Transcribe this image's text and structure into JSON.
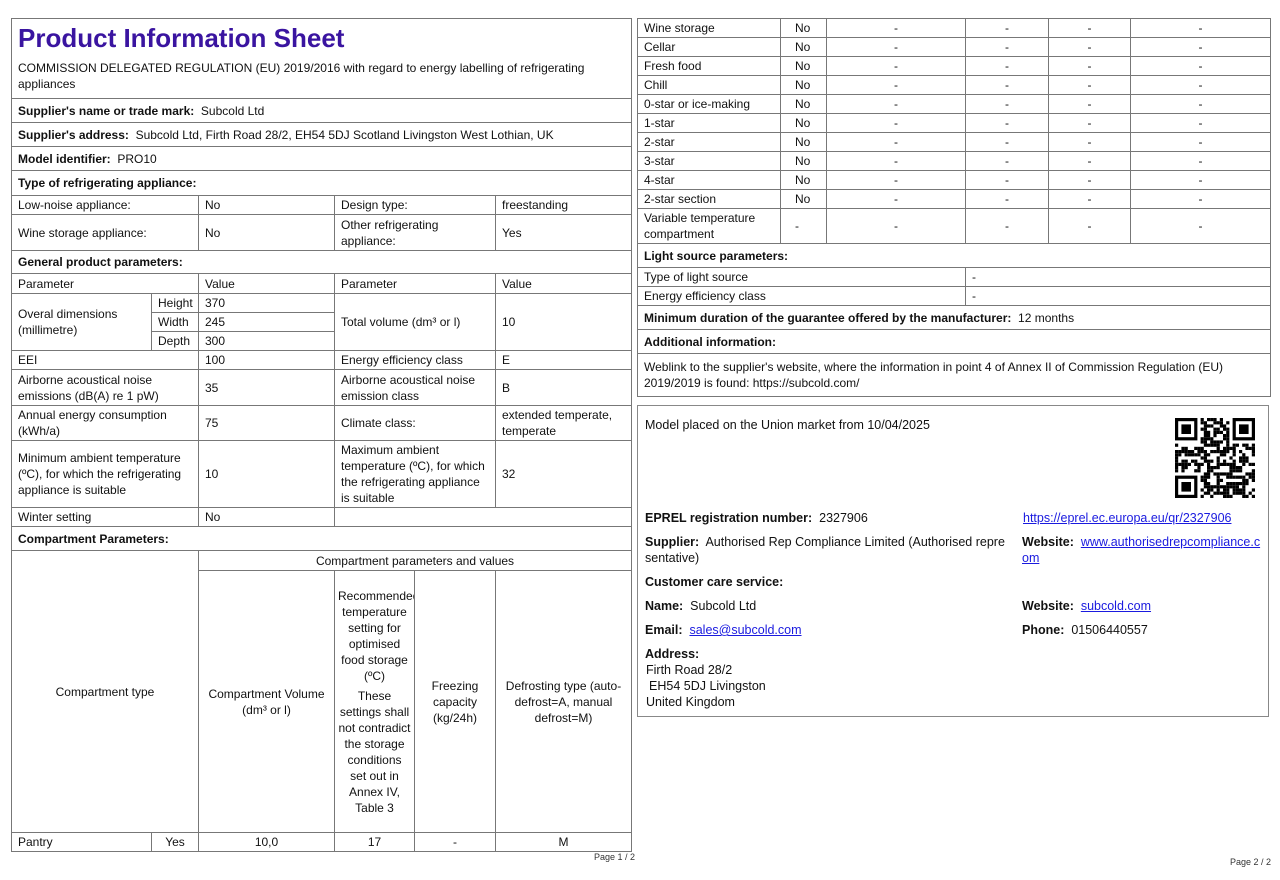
{
  "page1": {
    "title": "Product Information Sheet",
    "regulation": "COMMISSION DELEGATED REGULATION (EU) 2019/2016 with regard to energy labelling of refrigerating appliances",
    "supplier_label": "Supplier's name or trade mark:",
    "supplier": "Subcold Ltd",
    "address_label": "Supplier's address:",
    "address": "Subcold Ltd, Firth Road 28/2, EH54 5DJ Scotland Livingston West Lothian, UK",
    "model_label": "Model identifier:",
    "model": "PRO10",
    "type_heading": "Type of refrigerating appliance:",
    "low_noise_label": "Low-noise appliance:",
    "low_noise": "No",
    "design_label": "Design type:",
    "design": "freestanding",
    "wine_label": "Wine storage appliance:",
    "wine": "No",
    "other_label": "Other refrigerating appliance:",
    "other": "Yes",
    "general_heading": "General product parameters:",
    "col_param": "Parameter",
    "col_value": "Value",
    "dims_label": "Overal dimensions (millimetre)",
    "height_label": "Height",
    "height": "370",
    "width_label": "Width",
    "width": "245",
    "depth_label": "Depth",
    "depth": "300",
    "volume_label": "Total volume (dm³ or l)",
    "volume": "10",
    "eei_label": "EEI",
    "eei": "100",
    "eclass_label": "Energy efficiency class",
    "eclass": "E",
    "noise_label": "Airborne acoustical noise emissions (dB(A) re 1 pW)",
    "noise": "35",
    "noise_class_label": "Airborne acoustical noise emission class",
    "noise_class": "B",
    "annual_label": "Annual energy consumption (kWh/a)",
    "annual": "75",
    "climate_label": "Climate class:",
    "climate": "extended temperate, temperate",
    "min_amb_label": "Minimum ambient temperature (ºC), for which the refrigerating appliance is suitable",
    "min_amb": "10",
    "max_amb_label": "Maximum ambient temperature (ºC), for which the refrigerating appliance is suitable",
    "max_amb": "32",
    "winter_label": "Winter setting",
    "winter": "No",
    "comp_heading": "Compartment Parameters:",
    "comp_values_heading": "Compartment parameters and values",
    "comp_type": "Compartment type",
    "comp_volume": "Compartment Volume (dm³ or l)",
    "comp_temp": "Recommended temperature setting for optimised food storage (ºC)",
    "comp_temp_note": "These settings shall not contradict the storage conditions set out in Annex IV, Table 3",
    "comp_freezing": "Freezing capacity (kg/24h)",
    "comp_defrost": "Defrosting type (auto-defrost=A, manual defrost=M)",
    "pantry": {
      "name": "Pantry",
      "present": "Yes",
      "volume": "10,0",
      "temp": "17",
      "freezing": "-",
      "defrost": "M"
    },
    "page_num": "Page 1 / 2"
  },
  "page2": {
    "compartments": [
      [
        "Wine storage",
        "No",
        "-",
        "-",
        "-",
        "-"
      ],
      [
        "Cellar",
        "No",
        "-",
        "-",
        "-",
        "-"
      ],
      [
        "Fresh food",
        "No",
        "-",
        "-",
        "-",
        "-"
      ],
      [
        "Chill",
        "No",
        "-",
        "-",
        "-",
        "-"
      ],
      [
        "0-star or ice-making",
        "No",
        "-",
        "-",
        "-",
        "-"
      ],
      [
        "1-star",
        "No",
        "-",
        "-",
        "-",
        "-"
      ],
      [
        "2-star",
        "No",
        "-",
        "-",
        "-",
        "-"
      ],
      [
        "3-star",
        "No",
        "-",
        "-",
        "-",
        "-"
      ],
      [
        "4-star",
        "No",
        "-",
        "-",
        "-",
        "-"
      ],
      [
        "2-star section",
        "No",
        "-",
        "-",
        "-",
        "-"
      ],
      [
        "Variable temperature compartment",
        "-",
        "-",
        "-",
        "-",
        "-"
      ]
    ],
    "light_heading": "Light source parameters:",
    "light_type_label": "Type of light source",
    "light_type": "-",
    "light_class_label": "Energy efficiency class",
    "light_class": "-",
    "guarantee_label": "Minimum duration of the guarantee offered by the manufacturer:",
    "guarantee": "12 months",
    "additional_heading": "Additional information:",
    "weblink": "Weblink to the supplier's website, where the information in point 4 of Annex II of Commission Regulation (EU) 2019/2019 is found:  https://subcold.com/",
    "market": "Model placed on the Union market from 10/04/2025",
    "eprel_label": "EPREL registration number:",
    "eprel": "2327906",
    "eprel_url": "https://eprel.ec.europa.eu/qr/2327906",
    "supplier_label": "Supplier:",
    "supplier": "Authorised Rep Compliance Limited (Authorised representative)",
    "website_label": "Website:",
    "supplier_website": "www.authorisedrepcompliance.com",
    "care_heading": "Customer care service:",
    "name_label": "Name:",
    "name": "Subcold Ltd",
    "care_website": "subcold.com",
    "email_label": "Email:",
    "email": "sales@subcold.com",
    "phone_label": "Phone:",
    "phone": "01506440557",
    "address_label": "Address:",
    "address_lines": [
      "Firth Road 28/2",
      "EH54 5DJ Livingston",
      "United Kingdom"
    ],
    "qr_icon": "qr-code-icon",
    "page_num": "Page 2 / 2"
  },
  "colors": {
    "title": "#3a14a0",
    "link": "#1a1adf",
    "border": "#777777"
  }
}
